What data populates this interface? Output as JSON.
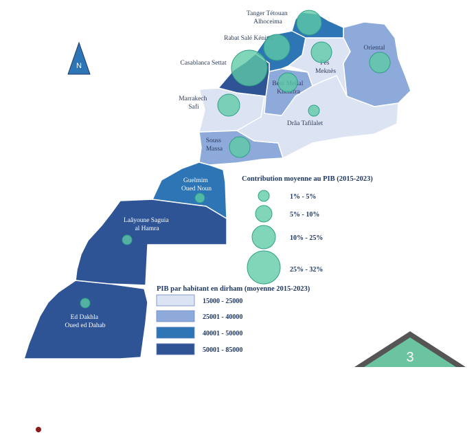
{
  "colors": {
    "class1": "#dce3f3",
    "class2": "#8eaadb",
    "class3": "#2e75b6",
    "class4": "#2f5496",
    "bubble_fill": "#5dcaa5",
    "bubble_stroke": "#2e9f86",
    "border": "#ffffff",
    "text": "#1f3864",
    "footer_green": "#6cc3a0",
    "footer_dark": "#555555",
    "bullet": "#8b1a1a"
  },
  "north": {
    "label": "N",
    "icon": "north-arrow-icon"
  },
  "regions": [
    {
      "id": "tanger",
      "name": "Tanger Tétouan\nAlhoceima",
      "class": 3,
      "gdp_share": "10% - 25%"
    },
    {
      "id": "oriental",
      "name": "Oriental",
      "class": 2,
      "gdp_share": "5% - 10%"
    },
    {
      "id": "fes",
      "name": "Fès\nMeknès",
      "class": 1,
      "gdp_share": "5% - 10%"
    },
    {
      "id": "rabat",
      "name": "Rabat Salé Kénitra",
      "class": 3,
      "gdp_share": "10% - 25%"
    },
    {
      "id": "casablanca",
      "name": "Casablanca Settat",
      "class": 4,
      "gdp_share": "25% - 32%"
    },
    {
      "id": "benimellal",
      "name": "Beni Mellal\nKhenifra",
      "class": 2,
      "gdp_share": "5% - 10%"
    },
    {
      "id": "marrakech",
      "name": "Marrakech\nSafi",
      "class": 1,
      "gdp_share": "5% - 10%"
    },
    {
      "id": "draa",
      "name": "Drâa Tafilalet",
      "class": 1,
      "gdp_share": "1% - 5%"
    },
    {
      "id": "souss",
      "name": "Souss\nMassa",
      "class": 2,
      "gdp_share": "5% - 10%"
    },
    {
      "id": "guelmim",
      "name": "Guelmim\nOued Noun",
      "class": 3,
      "gdp_share": "1% - 5%"
    },
    {
      "id": "laayoune",
      "name": "Laâyoune Saguia\nal Hamra",
      "class": 4,
      "gdp_share": "1% - 5%"
    },
    {
      "id": "dakhla",
      "name": "Ed Dakhla\nOued ed Dahab",
      "class": 4,
      "gdp_share": "1% - 5%"
    }
  ],
  "legend_bubbles": {
    "title": "Contribution moyenne au PIB (2015-2023)",
    "items": [
      "1% - 5%",
      "5% - 10%",
      "10% - 25%",
      "25% - 32%"
    ]
  },
  "legend_colors": {
    "title": "PIB par habitant en dirham (moyenne 2015-2023)",
    "items": [
      "15000 - 25000",
      "25001 - 40000",
      "40001 - 50000",
      "50001 - 85000"
    ]
  },
  "footer": {
    "page_number": "3"
  }
}
